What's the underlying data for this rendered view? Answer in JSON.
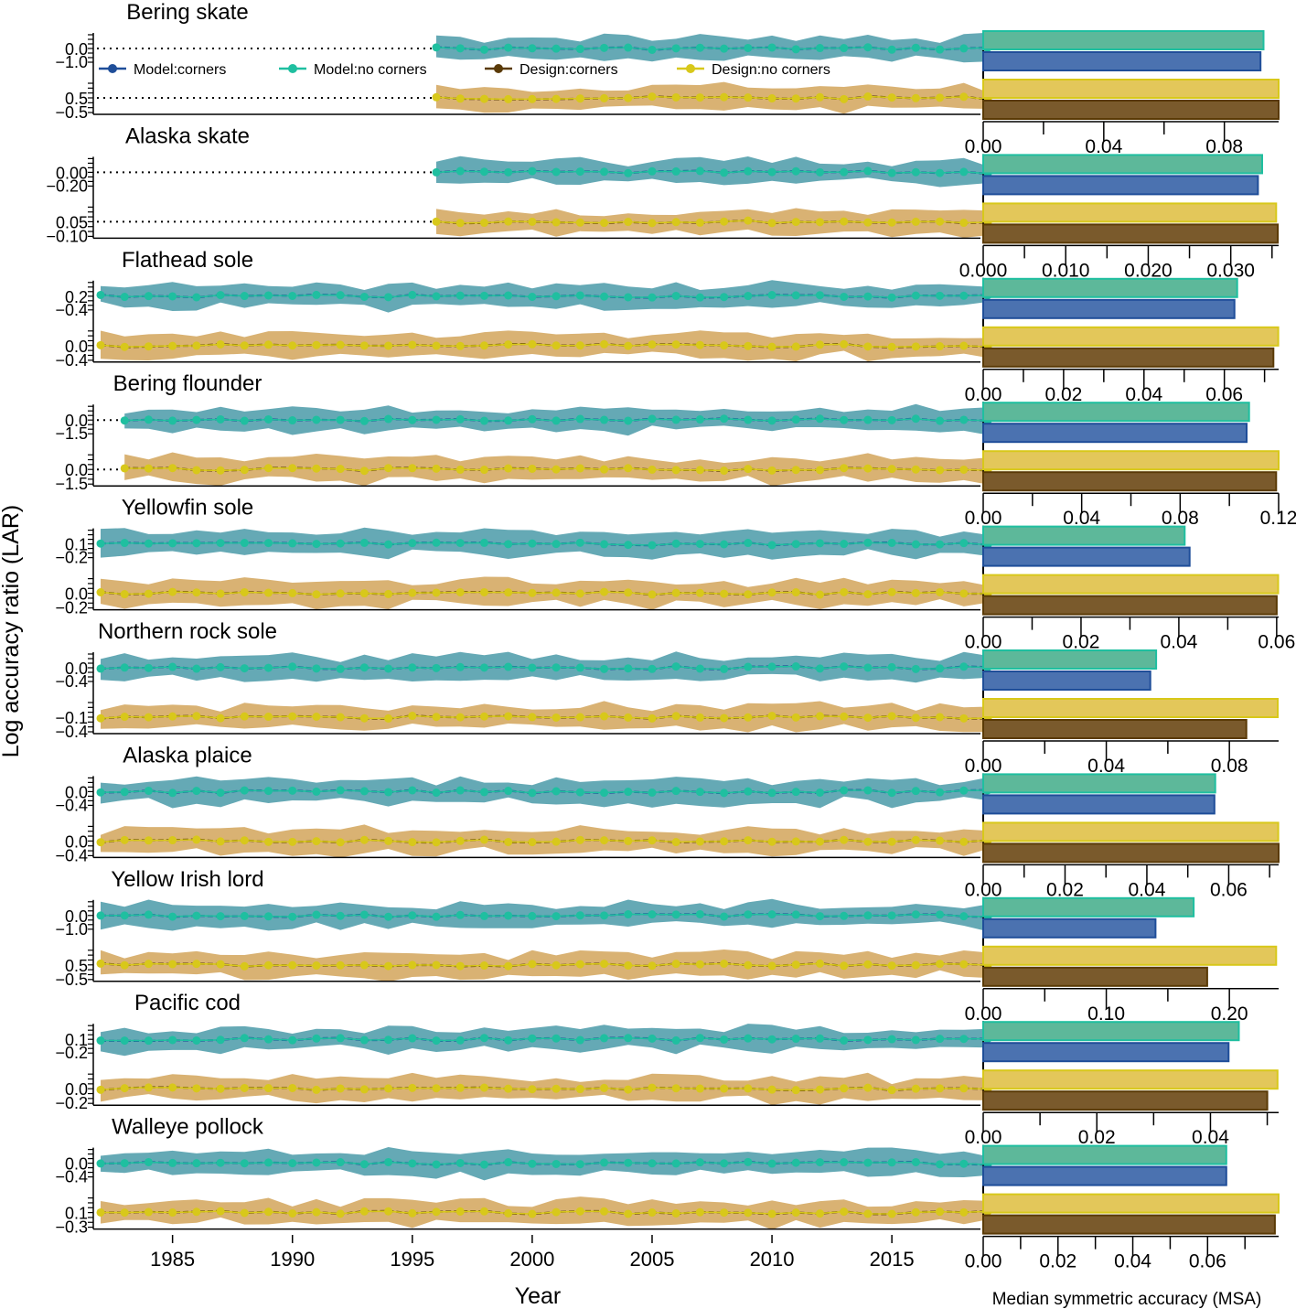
{
  "figure": {
    "y_axis_label": "Log accuracy ratio (LAR)",
    "x_axis_label": "Year",
    "msa_axis_label": "Median symmetric accuracy (MSA)",
    "year_ticks": [
      "1985",
      "1990",
      "1995",
      "2000",
      "2005",
      "2010",
      "2015"
    ]
  },
  "colors": {
    "model_corners": "#1f4e99",
    "model_no_corners": "#1fbfa0",
    "design_corners": "#5a3a06",
    "design_no_corners": "#d8c81a",
    "model_band": "#4a9aa8",
    "design_band": "#d2a45a",
    "bar_model_corners": "#4b72b0",
    "bar_model_no_corners": "#5db89a",
    "bar_design_corners": "#7a5a2c",
    "bar_design_no_corners": "#e3c75a"
  },
  "legend": [
    {
      "key": "model_corners",
      "label": "Model:corners"
    },
    {
      "key": "model_no_corners",
      "label": "Model:no corners"
    },
    {
      "key": "design_corners",
      "label": "Design:corners"
    },
    {
      "key": "design_no_corners",
      "label": "Design:no corners"
    }
  ],
  "chart_data": {
    "type": "line",
    "description_x_range": [
      1982,
      2019
    ],
    "panels": [
      {
        "species": "Bering skate",
        "start_year": 1996,
        "model_ticks": [
          "0.0",
          "−1.0"
        ],
        "design_ticks": [
          "0.5",
          "−0.5"
        ],
        "msa": {
          "model_corners": 0.092,
          "model_no_corners": 0.093,
          "design_corners": 0.098,
          "design_no_corners": 0.098
        },
        "msa_axis": {
          "max": 0.098,
          "ticks": [
            "0.00",
            "0.04",
            "0.08"
          ],
          "tick_values": [
            0,
            0.04,
            0.08
          ]
        }
      },
      {
        "species": "Alaska skate",
        "start_year": 1996,
        "model_ticks": [
          "0.00",
          "−0.20"
        ],
        "design_ticks": [
          "0.05",
          "−0.10"
        ],
        "msa": {
          "model_corners": 0.0333,
          "model_no_corners": 0.0338,
          "design_corners": 0.0357,
          "design_no_corners": 0.0355
        },
        "msa_axis": {
          "max": 0.0358,
          "ticks": [
            "0.000",
            "0.010",
            "0.020",
            "0.030"
          ],
          "tick_values": [
            0,
            0.01,
            0.02,
            0.03
          ]
        }
      },
      {
        "species": "Flathead sole",
        "start_year": 1982,
        "model_ticks": [
          "0.2",
          "−0.4"
        ],
        "design_ticks": [
          "0.0",
          "−0.4"
        ],
        "msa": {
          "model_corners": 0.0625,
          "model_no_corners": 0.0632,
          "design_corners": 0.0722,
          "design_no_corners": 0.0734
        },
        "msa_axis": {
          "max": 0.0735,
          "ticks": [
            "0.00",
            "0.02",
            "0.04",
            "0.06"
          ],
          "tick_values": [
            0,
            0.02,
            0.04,
            0.06
          ]
        }
      },
      {
        "species": "Bering flounder",
        "start_year": 1983,
        "model_ticks": [
          "0.0",
          "−1.5"
        ],
        "design_ticks": [
          "0.0",
          "−1.5"
        ],
        "msa": {
          "model_corners": 0.107,
          "model_no_corners": 0.108,
          "design_corners": 0.119,
          "design_no_corners": 0.12
        },
        "msa_axis": {
          "max": 0.12,
          "ticks": [
            "0.00",
            "0.04",
            "0.08",
            "0.12"
          ],
          "tick_values": [
            0,
            0.04,
            0.08,
            0.12
          ]
        }
      },
      {
        "species": "Yellowfin sole",
        "start_year": 1982,
        "model_ticks": [
          "0.1",
          "−0.2"
        ],
        "design_ticks": [
          "0.0",
          "−0.2"
        ],
        "msa": {
          "model_corners": 0.0422,
          "model_no_corners": 0.0412,
          "design_corners": 0.06,
          "design_no_corners": 0.0603
        },
        "msa_axis": {
          "max": 0.0604,
          "ticks": [
            "0.00",
            "0.02",
            "0.04",
            "0.06"
          ],
          "tick_values": [
            0,
            0.02,
            0.04,
            0.06
          ]
        }
      },
      {
        "species": "Northern rock sole",
        "start_year": 1982,
        "model_ticks": [
          "0.0",
          "−0.4"
        ],
        "design_ticks": [
          "−0.1",
          "−0.4"
        ],
        "msa": {
          "model_corners": 0.0543,
          "model_no_corners": 0.0562,
          "design_corners": 0.0855,
          "design_no_corners": 0.0957
        },
        "msa_axis": {
          "max": 0.096,
          "ticks": [
            "0.00",
            "0.04",
            "0.08"
          ],
          "tick_values": [
            0,
            0.04,
            0.08
          ]
        }
      },
      {
        "species": "Alaska plaice",
        "start_year": 1982,
        "model_ticks": [
          "0.0",
          "−0.4"
        ],
        "design_ticks": [
          "0.0",
          "−0.4"
        ],
        "msa": {
          "model_corners": 0.0565,
          "model_no_corners": 0.0567,
          "design_corners": 0.0722,
          "design_no_corners": 0.0721
        },
        "msa_axis": {
          "max": 0.0722,
          "ticks": [
            "0.00",
            "0.02",
            "0.04",
            "0.06"
          ],
          "tick_values": [
            0,
            0.02,
            0.04,
            0.06
          ]
        }
      },
      {
        "species": "Yellow Irish lord",
        "start_year": 1982,
        "model_ticks": [
          "0.0",
          "−1.0"
        ],
        "design_ticks": [
          "0.5",
          "−0.5"
        ],
        "msa": {
          "model_corners": 0.14,
          "model_no_corners": 0.171,
          "design_corners": 0.182,
          "design_no_corners": 0.238
        },
        "msa_axis": {
          "max": 0.24,
          "ticks": [
            "0.00",
            "0.10",
            "0.20"
          ],
          "tick_values": [
            0,
            0.1,
            0.2
          ]
        }
      },
      {
        "species": "Pacific cod",
        "start_year": 1982,
        "model_ticks": [
          "0.1",
          "−0.2"
        ],
        "design_ticks": [
          "0.0",
          "−0.2"
        ],
        "msa": {
          "model_corners": 0.0432,
          "model_no_corners": 0.045,
          "design_corners": 0.05,
          "design_no_corners": 0.0518
        },
        "msa_axis": {
          "max": 0.052,
          "ticks": [
            "0.00",
            "0.02",
            "0.04"
          ],
          "tick_values": [
            0,
            0.02,
            0.04
          ]
        }
      },
      {
        "species": "Walleye pollock",
        "start_year": 1982,
        "model_ticks": [
          "0.0",
          "−0.4"
        ],
        "design_ticks": [
          "0.1",
          "−0.3"
        ],
        "msa": {
          "model_corners": 0.065,
          "model_no_corners": 0.065,
          "design_corners": 0.078,
          "design_no_corners": 0.079
        },
        "msa_axis": {
          "max": 0.079,
          "ticks": [
            "0.00",
            "0.02",
            "0.04",
            "0.06"
          ],
          "tick_values": [
            0,
            0.02,
            0.04,
            0.06
          ]
        }
      }
    ]
  }
}
